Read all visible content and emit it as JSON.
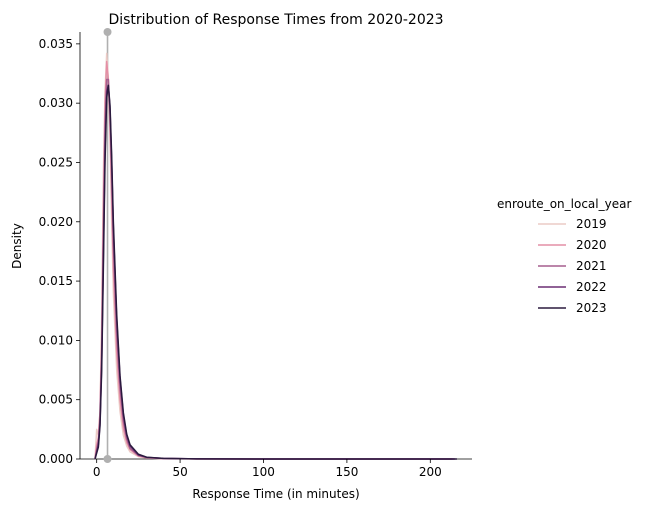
{
  "chart_data": {
    "type": "line",
    "title": "Distribution of Response Times from 2020-2023",
    "xlabel": "Response Time (in minutes)",
    "ylabel": "Density",
    "xlim": [
      -10,
      225
    ],
    "ylim": [
      0,
      0.036
    ],
    "x_ticks": [
      0,
      50,
      100,
      150,
      200
    ],
    "y_ticks": [
      0.0,
      0.005,
      0.01,
      0.015,
      0.02,
      0.025,
      0.03,
      0.035
    ],
    "x_tick_labels": [
      "0",
      "50",
      "100",
      "150",
      "200"
    ],
    "y_tick_labels": [
      "0.000",
      "0.005",
      "0.010",
      "0.015",
      "0.020",
      "0.025",
      "0.030",
      "0.035"
    ],
    "grid": false,
    "legend": {
      "title": "enroute_on_local_year",
      "placement": "right-outside"
    },
    "series": [
      {
        "name": "2019",
        "color": "#eccbc6",
        "points": [
          [
            -1,
            0
          ],
          [
            0,
            0.0025
          ],
          [
            1,
            0.002
          ],
          [
            2,
            0.004
          ],
          [
            3,
            0.012
          ],
          [
            4,
            0.024
          ],
          [
            5,
            0.031
          ],
          [
            6,
            0.0342
          ],
          [
            7,
            0.032
          ],
          [
            8,
            0.027
          ],
          [
            9,
            0.02
          ],
          [
            10,
            0.014
          ],
          [
            12,
            0.0075
          ],
          [
            14,
            0.004
          ],
          [
            16,
            0.002
          ],
          [
            18,
            0.0011
          ],
          [
            20,
            0.0006
          ],
          [
            25,
            0.0002
          ],
          [
            30,
            8e-05
          ],
          [
            40,
            2e-05
          ],
          [
            60,
            5e-06
          ],
          [
            100,
            0
          ],
          [
            150,
            0
          ],
          [
            200,
            0
          ],
          [
            212,
            0
          ]
        ]
      },
      {
        "name": "2020",
        "color": "#e48fa6",
        "points": [
          [
            -1,
            0
          ],
          [
            0,
            0.0012
          ],
          [
            1,
            0.0018
          ],
          [
            2,
            0.004
          ],
          [
            3,
            0.01
          ],
          [
            4,
            0.021
          ],
          [
            5,
            0.03
          ],
          [
            6,
            0.0335
          ],
          [
            7,
            0.032
          ],
          [
            8,
            0.028
          ],
          [
            9,
            0.022
          ],
          [
            10,
            0.016
          ],
          [
            12,
            0.009
          ],
          [
            14,
            0.005
          ],
          [
            16,
            0.0026
          ],
          [
            18,
            0.0014
          ],
          [
            20,
            0.0008
          ],
          [
            25,
            0.00025
          ],
          [
            30,
            0.0001
          ],
          [
            40,
            3e-05
          ],
          [
            60,
            8e-06
          ],
          [
            100,
            0
          ],
          [
            150,
            0
          ],
          [
            200,
            0
          ],
          [
            213,
            0
          ]
        ]
      },
      {
        "name": "2021",
        "color": "#a65e8e",
        "points": [
          [
            -1,
            0
          ],
          [
            0,
            0.0008
          ],
          [
            1,
            0.0015
          ],
          [
            2,
            0.0035
          ],
          [
            3,
            0.009
          ],
          [
            4,
            0.019
          ],
          [
            5,
            0.028
          ],
          [
            6,
            0.032
          ],
          [
            7,
            0.032
          ],
          [
            8,
            0.029
          ],
          [
            9,
            0.024
          ],
          [
            10,
            0.018
          ],
          [
            12,
            0.0105
          ],
          [
            14,
            0.006
          ],
          [
            16,
            0.0032
          ],
          [
            18,
            0.0017
          ],
          [
            20,
            0.0009
          ],
          [
            25,
            0.0003
          ],
          [
            30,
            0.00012
          ],
          [
            40,
            4e-05
          ],
          [
            60,
            1e-05
          ],
          [
            100,
            0
          ],
          [
            150,
            0
          ],
          [
            200,
            0
          ],
          [
            214,
            0
          ]
        ]
      },
      {
        "name": "2022",
        "color": "#6b2f73",
        "points": [
          [
            -1,
            0
          ],
          [
            0,
            0.0006
          ],
          [
            1,
            0.0012
          ],
          [
            2,
            0.003
          ],
          [
            3,
            0.008
          ],
          [
            4,
            0.017
          ],
          [
            5,
            0.026
          ],
          [
            6,
            0.031
          ],
          [
            7,
            0.0315
          ],
          [
            8,
            0.0295
          ],
          [
            9,
            0.025
          ],
          [
            10,
            0.0195
          ],
          [
            12,
            0.0118
          ],
          [
            14,
            0.0068
          ],
          [
            16,
            0.0037
          ],
          [
            18,
            0.002
          ],
          [
            20,
            0.0011
          ],
          [
            25,
            0.00035
          ],
          [
            30,
            0.00014
          ],
          [
            40,
            5e-05
          ],
          [
            60,
            1e-05
          ],
          [
            100,
            0
          ],
          [
            150,
            0
          ],
          [
            200,
            0
          ],
          [
            215,
            0
          ]
        ]
      },
      {
        "name": "2023",
        "color": "#2b1a3e",
        "points": [
          [
            -1,
            0
          ],
          [
            0,
            0.0005
          ],
          [
            1,
            0.001
          ],
          [
            2,
            0.0028
          ],
          [
            3,
            0.0075
          ],
          [
            4,
            0.016
          ],
          [
            5,
            0.025
          ],
          [
            6,
            0.0305
          ],
          [
            7,
            0.0315
          ],
          [
            8,
            0.0298
          ],
          [
            9,
            0.0255
          ],
          [
            10,
            0.02
          ],
          [
            12,
            0.0122
          ],
          [
            14,
            0.007
          ],
          [
            16,
            0.0039
          ],
          [
            18,
            0.0021
          ],
          [
            20,
            0.0012
          ],
          [
            25,
            0.0004
          ],
          [
            30,
            0.00015
          ],
          [
            40,
            5e-05
          ],
          [
            60,
            1e-05
          ],
          [
            100,
            0
          ],
          [
            150,
            0
          ],
          [
            200,
            0
          ],
          [
            216,
            0
          ]
        ]
      }
    ],
    "annotation_line": {
      "x": 6.5,
      "color": "#b0b0b0"
    }
  }
}
